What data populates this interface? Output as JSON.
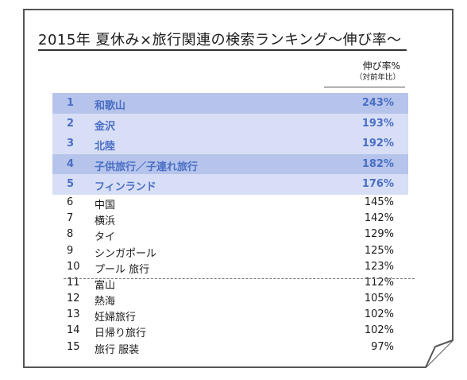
{
  "title": "2015年 夏休み×旅行関連の検索ランキング～伸び率～",
  "column_header": {
    "main": "伸び率%",
    "sub": "（対前年比）"
  },
  "rankings": [
    {
      "rank": "1",
      "name": "和歌山",
      "growth": "243%"
    },
    {
      "rank": "2",
      "name": "金沢",
      "growth": "193%"
    },
    {
      "rank": "3",
      "name": "北陸",
      "growth": "192%"
    },
    {
      "rank": "4",
      "name": "子供旅行／子連れ旅行",
      "growth": "182%"
    },
    {
      "rank": "5",
      "name": "フィンランド",
      "growth": "176%"
    },
    {
      "rank": "6",
      "name": "中国",
      "growth": "145%"
    },
    {
      "rank": "7",
      "name": "横浜",
      "growth": "142%"
    },
    {
      "rank": "8",
      "name": "タイ",
      "growth": "129%"
    },
    {
      "rank": "9",
      "name": "シンガポール",
      "growth": "125%"
    },
    {
      "rank": "10",
      "name": "プール 旅行",
      "growth": "123%"
    },
    {
      "rank": "11",
      "name": "富山",
      "growth": "112%"
    },
    {
      "rank": "12",
      "name": "熱海",
      "growth": "105%"
    },
    {
      "rank": "13",
      "name": "妊婦旅行",
      "growth": "102%"
    },
    {
      "rank": "14",
      "name": "日帰り旅行",
      "growth": "102%"
    },
    {
      "rank": "15",
      "name": "旅行 服装",
      "growth": "97%"
    }
  ],
  "colors": {
    "highlight_dark": "#b6c4ec",
    "highlight_light": "#d7def6",
    "highlight_text": "#4a6fc4"
  }
}
